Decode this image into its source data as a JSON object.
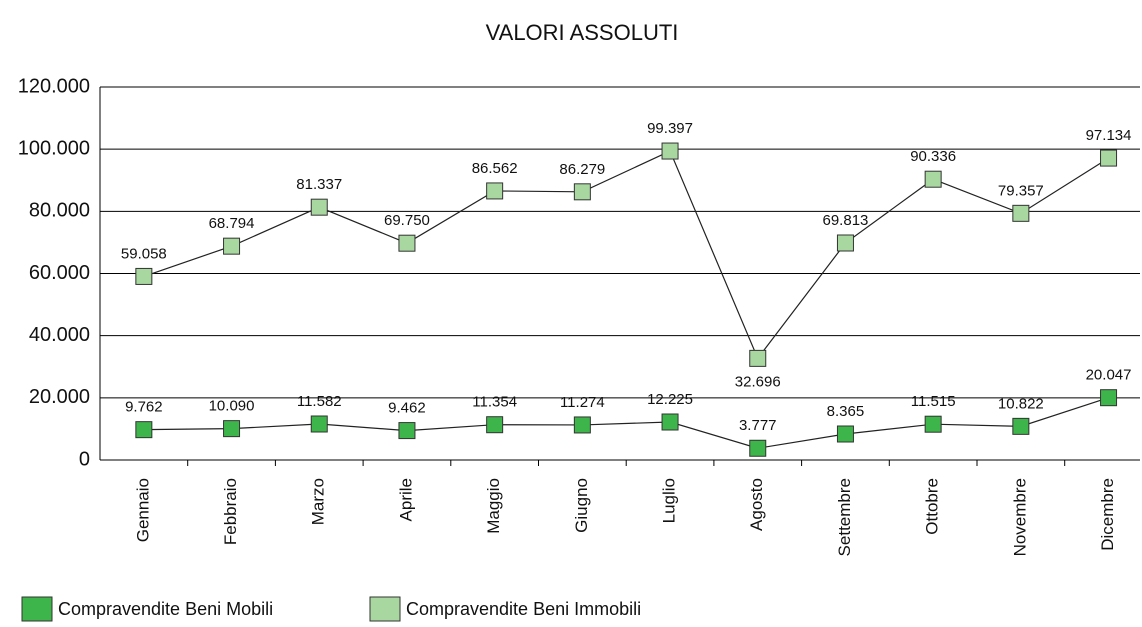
{
  "chart_data": {
    "type": "line",
    "title": "VALORI ASSOLUTI",
    "categories": [
      "Gennaio",
      "Febbraio",
      "Marzo",
      "Aprile",
      "Maggio",
      "Giugno",
      "Luglio",
      "Agosto",
      "Settembre",
      "Ottobre",
      "Novembre",
      "Dicembre"
    ],
    "series": [
      {
        "name": "Compravendite Beni Mobili",
        "color": "#3db54a",
        "values": [
          9762,
          10090,
          11582,
          9462,
          11354,
          11274,
          12225,
          3777,
          8365,
          11515,
          10822,
          20047
        ],
        "value_labels": [
          "9.762",
          "10.090",
          "11.582",
          "9.462",
          "11.354",
          "11.274",
          "12.225",
          "3.777",
          "8.365",
          "11.515",
          "10.822",
          "20.047"
        ]
      },
      {
        "name": "Compravendite Beni Immobili",
        "color": "#a8d8a0",
        "values": [
          59058,
          68794,
          81337,
          69750,
          86562,
          86279,
          99397,
          32696,
          69813,
          90336,
          79357,
          97134
        ],
        "value_labels": [
          "59.058",
          "68.794",
          "81.337",
          "69.750",
          "86.562",
          "86.279",
          "99.397",
          "32.696",
          "69.813",
          "90.336",
          "79.357",
          "97.134"
        ]
      }
    ],
    "ylim": [
      0,
      120000
    ],
    "yticks": [
      0,
      {
        "value": 20000,
        "label": "20.000"
      },
      {
        "value": 40000,
        "label": "40.000"
      },
      {
        "value": 60000,
        "label": "60.000"
      },
      {
        "value": 80000,
        "label": "80.000"
      },
      {
        "value": 100000,
        "label": "100.000"
      },
      {
        "value": 120000,
        "label": "120.000"
      }
    ],
    "grid": true
  }
}
